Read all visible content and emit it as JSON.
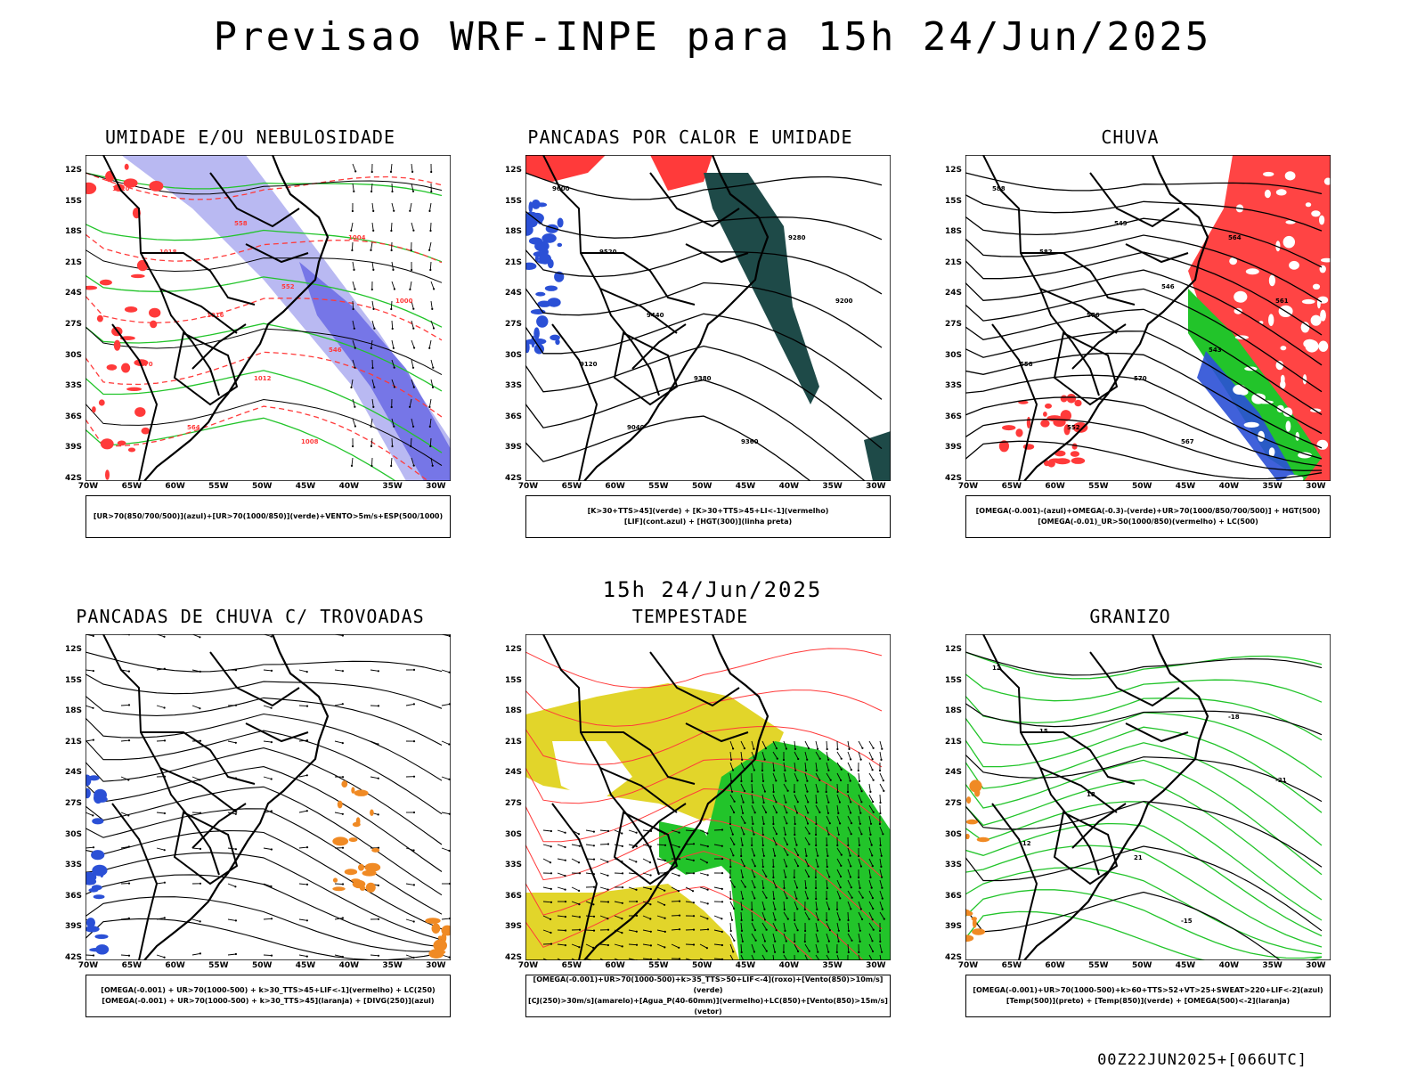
{
  "title": "Previsao WRF-INPE  para 15h 24/Jun/2025",
  "mid_title": "15h 24/Jun/2025",
  "footer": "00Z22JUN2025+[066UTC]",
  "lat_labels": [
    "12S",
    "15S",
    "18S",
    "21S",
    "24S",
    "27S",
    "30S",
    "33S",
    "36S",
    "39S",
    "42S"
  ],
  "lon_labels": [
    "70W",
    "65W",
    "60W",
    "55W",
    "50W",
    "45W",
    "40W",
    "35W",
    "30W"
  ],
  "colors": {
    "blue": "#6f6fe6",
    "lightblue": "#a8a8ef",
    "green": "#22c42a",
    "red": "#ff3a3a",
    "darkgreen": "#1e4a48",
    "orange": "#f08a24",
    "yellow": "#e2d52a"
  },
  "panels": [
    {
      "title": "UMIDADE E/OU NEBULOSIDADE",
      "legend": [
        "[UR>70(850/700/500)](azul)+[UR>70(1000/850)](verde)+VENTO>5m/s+ESP(500/1000)"
      ],
      "labels": [
        "1020",
        "1018",
        "1016",
        "1012",
        "1008",
        "1004",
        "1000",
        "570",
        "564",
        "558",
        "552",
        "546"
      ]
    },
    {
      "title": "PANCADAS POR CALOR E UMIDADE",
      "legend": [
        "[K>30+TTS>45](verde) + [K>30+TTS>45+LI<-1](vermelho)",
        "[LIF](cont.azul) + [HGT(300)](linha preta)"
      ],
      "labels": [
        "9600",
        "9520",
        "9440",
        "9380",
        "9360",
        "9280",
        "9200",
        "9120",
        "9040"
      ]
    },
    {
      "title": "CHUVA",
      "legend": [
        "[OMEGA(-0.001)-(azul)+OMEGA(-0.3)-(verde)+UR>70(1000/850/700/500)] + HGT(500)",
        "[OMEGA(-0.01)_UR>50(1000/850)(vermelho) + LC(500)"
      ],
      "labels": [
        "588",
        "582",
        "576",
        "570",
        "567",
        "564",
        "561",
        "558",
        "552",
        "549",
        "546",
        "543"
      ]
    },
    {
      "title": "PANCADAS DE CHUVA C/ TROVOADAS",
      "legend": [
        "[OMEGA(-0.001) + UR>70(1000-500) + k>30_TTS>45+LIF<-1](vermelho) + LC(250)",
        "[OMEGA(-0.001) + UR>70(1000-500) + k>30_TTS>45](laranja) + [DIVG(250)](azul)"
      ],
      "labels": []
    },
    {
      "title": "TEMPESTADE",
      "legend": [
        "[OMEGA(-0.001)+UR>70(1000-500)+k>35_TTS>50+LIF<-4](roxo)+[Vento(850)>10m/s](verde)",
        "[CJ(250)>30m/s](amarelo)+[Agua_P(40-60mm)](vermelho)+LC(850)+[Vento(850)>15m/s](vetor)"
      ],
      "labels": []
    },
    {
      "title": "GRANIZO",
      "legend": [
        "[OMEGA(-0.001)+UR>70(1000-500)+k>60+TTS>52+VT>25+SWEAT>220+LIF<-2](azul)",
        "[Temp(500)](preto) + [Temp(850)](verde) + [OMEGA(500)<-2](laranja)"
      ],
      "labels": [
        "12",
        "15",
        "18",
        "21",
        "-15",
        "-18",
        "-21",
        "-12"
      ]
    }
  ]
}
